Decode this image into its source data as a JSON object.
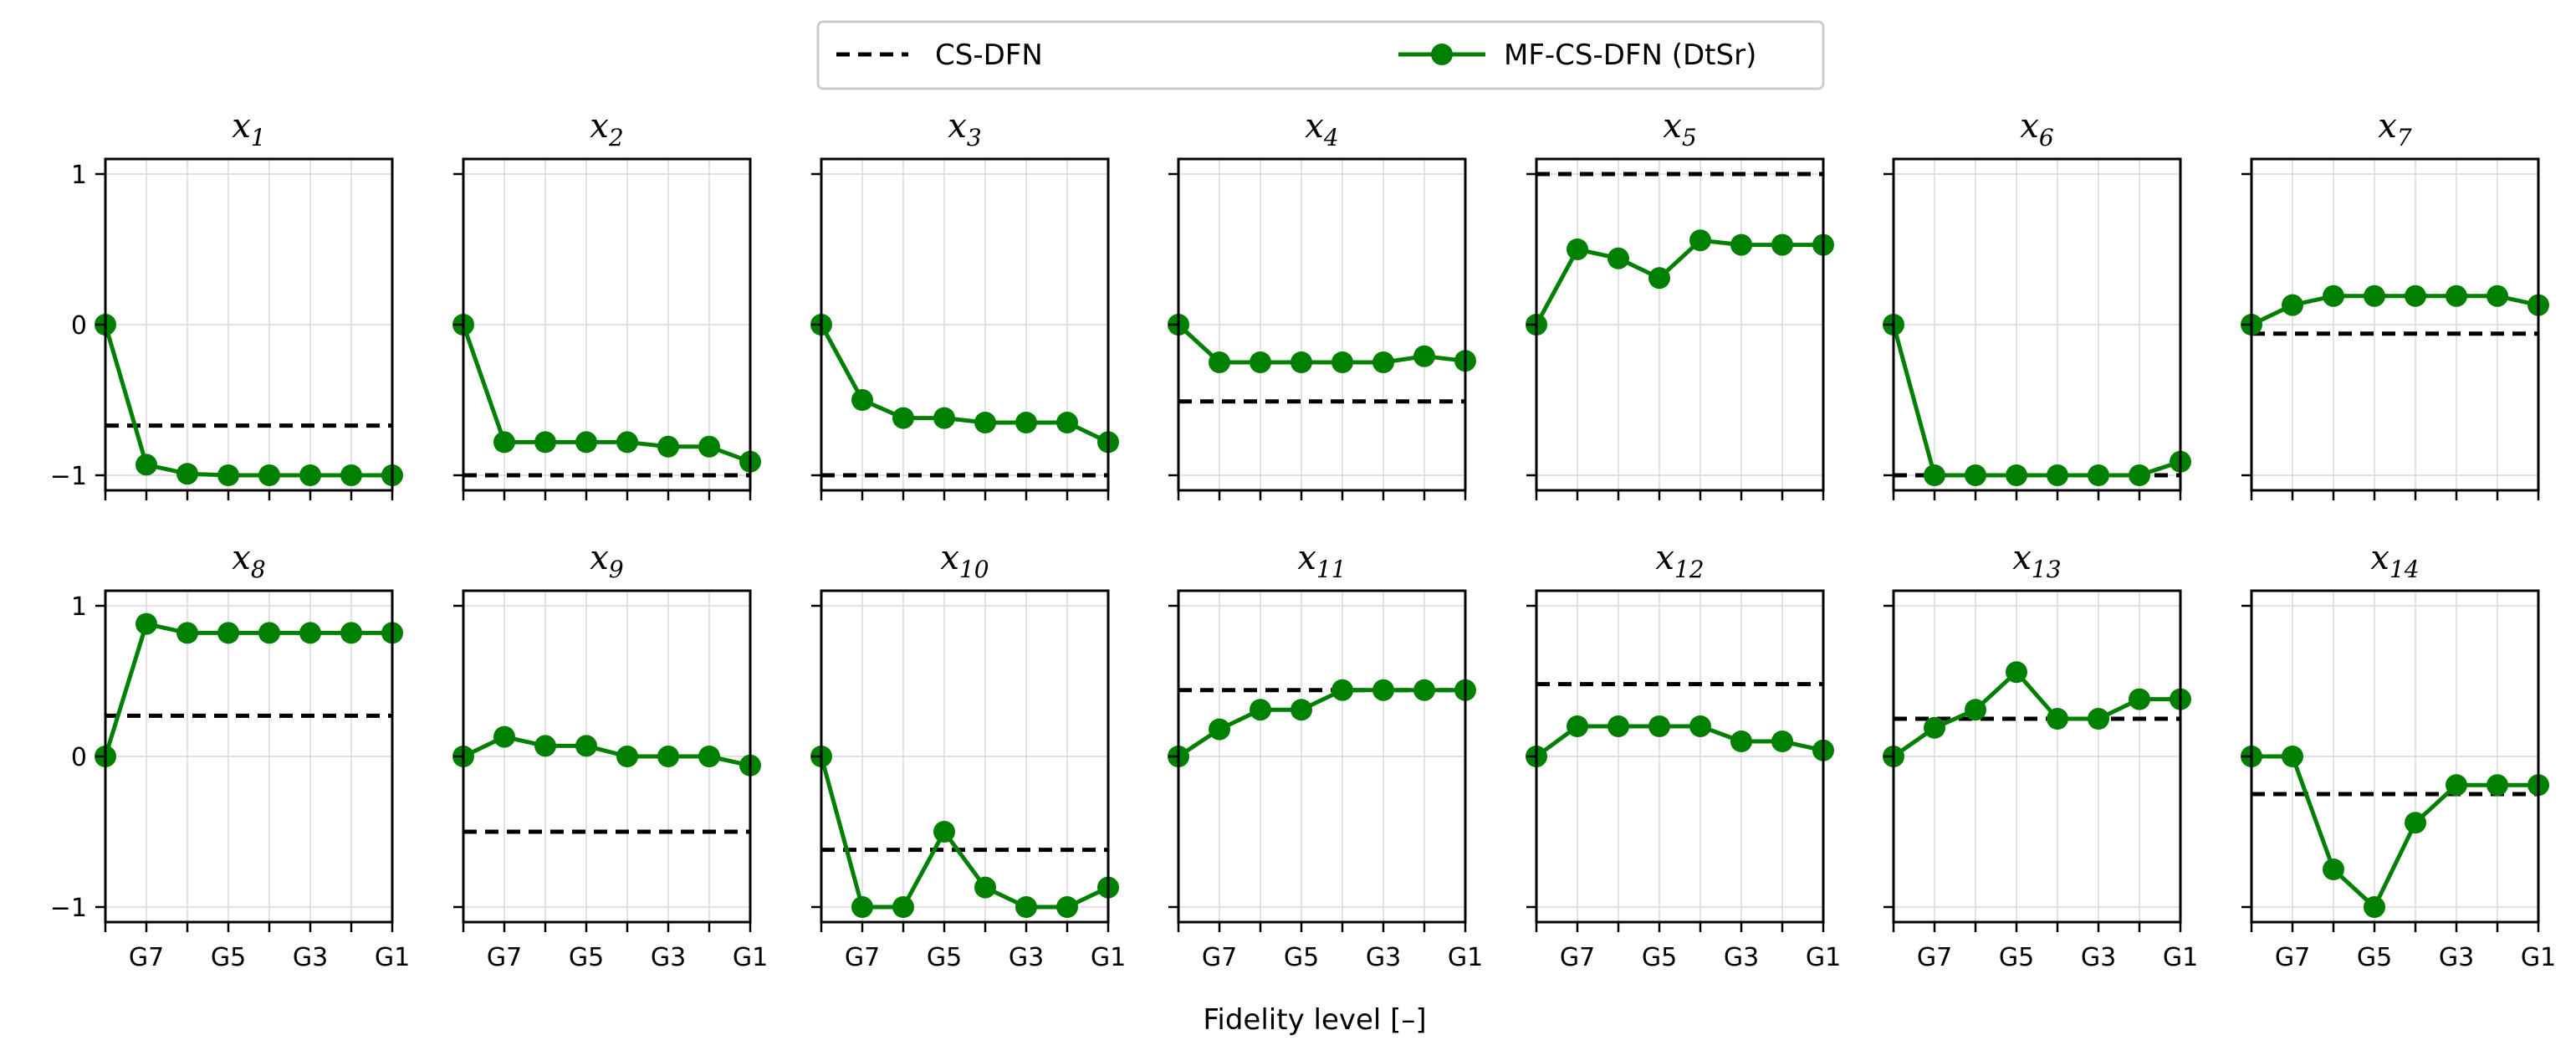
{
  "chart_data": {
    "type": "line",
    "layout": "small multiples, 2 rows x 7 columns",
    "xlabel": "Fidelity level [–]",
    "x_tick_labels": [
      "G7",
      "G5",
      "G3",
      "G1"
    ],
    "x_positions": [
      8,
      7,
      6,
      5,
      4,
      3,
      2,
      1
    ],
    "y_tick_labels": [
      "1",
      "0",
      "−1"
    ],
    "y_ticks": [
      1,
      0,
      -1
    ],
    "ylim": [
      -1.1,
      1.1
    ],
    "grid": true,
    "legend": {
      "placement": "top-center",
      "entries": [
        {
          "label": "CS-DFN",
          "style": "dashed",
          "color": "#000000"
        },
        {
          "label": "MF-CS-DFN (DtSr)",
          "style": "solid-marker",
          "color": "#008000"
        }
      ]
    },
    "colors": {
      "mf": "#008000",
      "cs": "#000000",
      "grid": "#d9d9d9"
    },
    "panels": [
      {
        "title": "x",
        "sub": "1",
        "cs_dfn": -0.67,
        "mf": [
          0,
          -0.93,
          -0.99,
          -1.0,
          -1.0,
          -1.0,
          -1.0,
          -1.0
        ]
      },
      {
        "title": "x",
        "sub": "2",
        "cs_dfn": -1.0,
        "mf": [
          0,
          -0.78,
          -0.78,
          -0.78,
          -0.78,
          -0.81,
          -0.81,
          -0.91
        ]
      },
      {
        "title": "x",
        "sub": "3",
        "cs_dfn": -1.0,
        "mf": [
          0,
          -0.5,
          -0.62,
          -0.62,
          -0.65,
          -0.65,
          -0.65,
          -0.78
        ]
      },
      {
        "title": "x",
        "sub": "4",
        "cs_dfn": -0.51,
        "mf": [
          0,
          -0.25,
          -0.25,
          -0.25,
          -0.25,
          -0.25,
          -0.21,
          -0.24
        ]
      },
      {
        "title": "x",
        "sub": "5",
        "cs_dfn": 1.0,
        "mf": [
          0,
          0.5,
          0.44,
          0.31,
          0.56,
          0.53,
          0.53,
          0.53
        ]
      },
      {
        "title": "x",
        "sub": "6",
        "cs_dfn": -1.0,
        "mf": [
          0,
          -1.0,
          -1.0,
          -1.0,
          -1.0,
          -1.0,
          -1.0,
          -0.91
        ]
      },
      {
        "title": "x",
        "sub": "7",
        "cs_dfn": -0.06,
        "mf": [
          0,
          0.13,
          0.19,
          0.19,
          0.19,
          0.19,
          0.19,
          0.13
        ]
      },
      {
        "title": "x",
        "sub": "8",
        "cs_dfn": 0.27,
        "mf": [
          0,
          0.88,
          0.82,
          0.82,
          0.82,
          0.82,
          0.82,
          0.82
        ]
      },
      {
        "title": "x",
        "sub": "9",
        "cs_dfn": -0.5,
        "mf": [
          0,
          0.13,
          0.07,
          0.07,
          0.0,
          0.0,
          0.0,
          -0.06
        ]
      },
      {
        "title": "x",
        "sub": "10",
        "cs_dfn": -0.62,
        "mf": [
          0,
          -1.0,
          -1.0,
          -0.5,
          -0.87,
          -1.0,
          -1.0,
          -0.87
        ]
      },
      {
        "title": "x",
        "sub": "11",
        "cs_dfn": 0.44,
        "mf": [
          0,
          0.18,
          0.31,
          0.31,
          0.44,
          0.44,
          0.44,
          0.44
        ]
      },
      {
        "title": "x",
        "sub": "12",
        "cs_dfn": 0.48,
        "mf": [
          0,
          0.2,
          0.2,
          0.2,
          0.2,
          0.1,
          0.1,
          0.04
        ]
      },
      {
        "title": "x",
        "sub": "13",
        "cs_dfn": 0.25,
        "mf": [
          0,
          0.19,
          0.31,
          0.56,
          0.25,
          0.25,
          0.38,
          0.38
        ]
      },
      {
        "title": "x",
        "sub": "14",
        "cs_dfn": -0.25,
        "mf": [
          0,
          0.0,
          -0.75,
          -1.0,
          -0.44,
          -0.19,
          -0.19,
          -0.19
        ]
      }
    ]
  }
}
